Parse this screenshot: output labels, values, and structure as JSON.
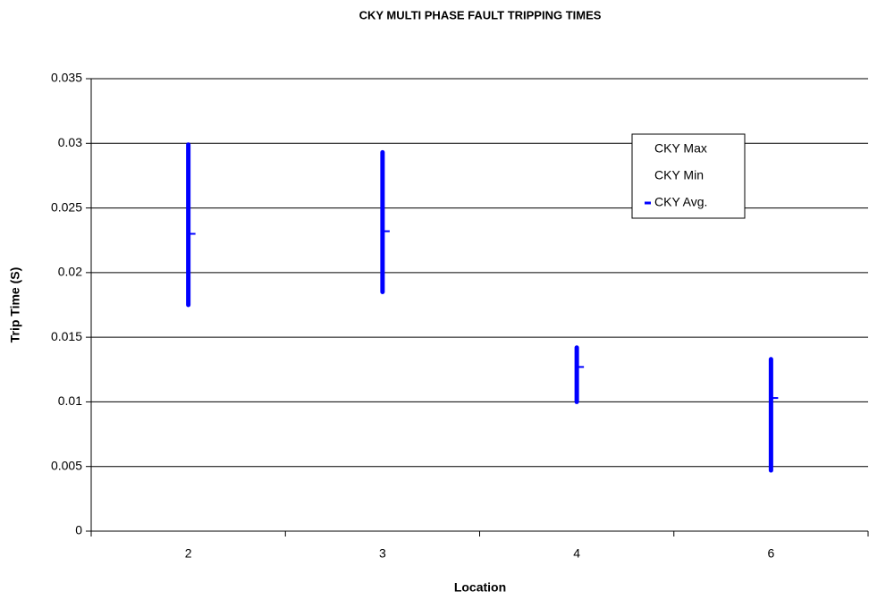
{
  "chart_data": {
    "type": "stock",
    "title": "CKY MULTI PHASE FAULT TRIPPING TIMES",
    "x_label": "Location",
    "y_label": "Trip Time (S)",
    "categories": [
      "2",
      "3",
      "4",
      "6"
    ],
    "series": [
      {
        "name": "CKY Max",
        "color": "#0000ff",
        "values": [
          0.0299,
          0.0293,
          0.0142,
          0.0133
        ]
      },
      {
        "name": "CKY Min",
        "color": "#0000ff",
        "values": [
          0.0175,
          0.0185,
          0.01,
          0.0047
        ]
      },
      {
        "name": "CKY Avg.",
        "color": "#0000ff",
        "marker": "dash",
        "values": [
          0.023,
          0.0232,
          0.0127,
          0.0103
        ]
      }
    ],
    "ylim": [
      0,
      0.035
    ],
    "yticks": [
      0,
      0.005,
      0.01,
      0.015,
      0.02,
      0.025,
      0.03,
      0.035
    ],
    "grid": true,
    "legend": "upper right"
  }
}
